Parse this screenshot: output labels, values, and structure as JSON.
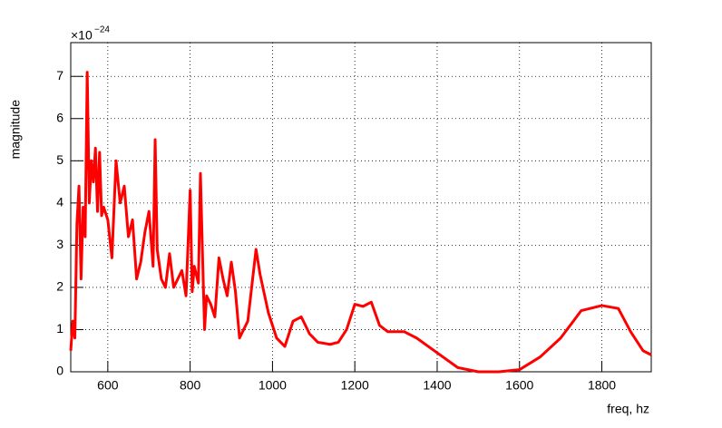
{
  "chart_data": {
    "type": "line",
    "x_label": "freq, hz",
    "y_label": "magnitude",
    "exponent_base": "×10",
    "exponent_power": "−24",
    "x": [
      510,
      515,
      520,
      525,
      530,
      535,
      540,
      545,
      550,
      555,
      560,
      565,
      570,
      575,
      580,
      585,
      590,
      600,
      610,
      620,
      630,
      640,
      650,
      660,
      670,
      680,
      690,
      700,
      710,
      715,
      720,
      730,
      740,
      750,
      760,
      770,
      780,
      790,
      800,
      805,
      810,
      820,
      825,
      830,
      835,
      840,
      850,
      860,
      870,
      880,
      890,
      900,
      910,
      920,
      940,
      960,
      970,
      990,
      1010,
      1030,
      1050,
      1070,
      1090,
      1110,
      1140,
      1160,
      1180,
      1200,
      1220,
      1240,
      1260,
      1280,
      1320,
      1350,
      1400,
      1450,
      1500,
      1550,
      1600,
      1650,
      1700,
      1750,
      1800,
      1840,
      1870,
      1900,
      1920
    ],
    "series": [
      {
        "name": "magnitude",
        "color": "#ff0000",
        "values": [
          0.5,
          1.2,
          0.8,
          3.5,
          4.4,
          2.2,
          3.9,
          3.2,
          7.1,
          4.0,
          5.0,
          4.5,
          5.3,
          3.8,
          5.2,
          3.7,
          3.9,
          3.6,
          2.7,
          5.0,
          4.0,
          4.4,
          3.2,
          3.6,
          2.2,
          2.6,
          3.3,
          3.8,
          2.5,
          5.5,
          2.9,
          2.2,
          2.0,
          2.8,
          2.0,
          2.2,
          2.4,
          1.8,
          4.3,
          1.9,
          2.5,
          2.1,
          4.7,
          2.8,
          1.0,
          1.8,
          1.6,
          1.3,
          2.7,
          2.2,
          1.8,
          2.6,
          1.9,
          0.8,
          1.2,
          2.9,
          2.3,
          1.4,
          0.8,
          0.6,
          1.2,
          1.3,
          0.9,
          0.7,
          0.65,
          0.7,
          1.0,
          1.6,
          1.55,
          1.65,
          1.1,
          0.95,
          0.95,
          0.8,
          0.45,
          0.1,
          0.0,
          0.0,
          0.05,
          0.35,
          0.8,
          1.45,
          1.57,
          1.5,
          0.95,
          0.5,
          0.4
        ]
      }
    ],
    "xlim": [
      510,
      1920
    ],
    "xticks": [
      600,
      800,
      1000,
      1200,
      1400,
      1600,
      1800
    ],
    "ylim": [
      0,
      7.8
    ],
    "yticks": [
      0,
      1,
      2,
      3,
      4,
      5,
      6,
      7
    ],
    "grid": true
  }
}
